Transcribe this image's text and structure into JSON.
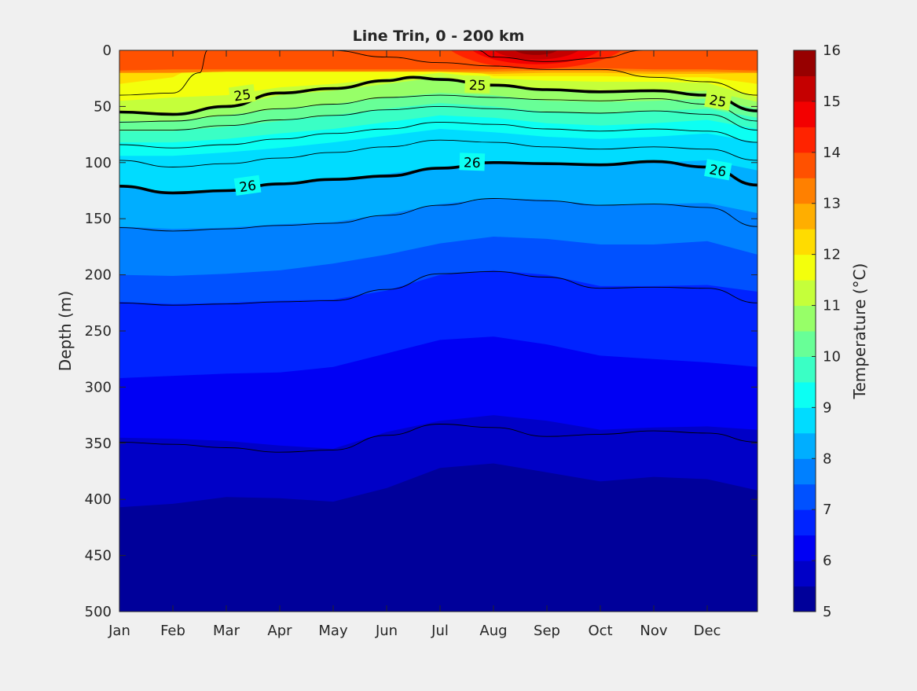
{
  "chart_data": {
    "type": "heatmap",
    "title": "Line Trin, 0 - 200 km",
    "xlabel": "",
    "ylabel": "Depth (m)",
    "x_tick_labels": [
      "Jan",
      "Feb",
      "Mar",
      "Apr",
      "May",
      "Jun",
      "Jul",
      "Aug",
      "Sep",
      "Oct",
      "Nov",
      "Dec"
    ],
    "x_range": [
      0,
      12
    ],
    "y_ticks": [
      0,
      50,
      100,
      150,
      200,
      250,
      300,
      350,
      400,
      450,
      500
    ],
    "y_range": [
      0,
      500
    ],
    "y_reversed": true,
    "colorbar": {
      "label": "Temperature (°C)",
      "ticks": [
        5,
        6,
        7,
        8,
        9,
        10,
        11,
        12,
        13,
        14,
        15,
        16
      ],
      "range": [
        5,
        16
      ],
      "step": 0.5,
      "colormap": "jet"
    },
    "isotherm_depths": [
      {
        "temperature": 13.5,
        "depths": [
          18,
          17,
          17,
          17,
          17,
          17,
          17,
          17,
          16,
          16,
          17,
          17,
          18,
          18
        ]
      },
      {
        "temperature": 13.0,
        "depths": [
          20,
          20,
          19,
          19,
          19,
          19,
          19,
          19,
          18,
          18,
          19,
          19,
          20,
          20
        ]
      },
      {
        "temperature": 12.5,
        "depths": [
          20,
          20,
          19,
          19,
          0,
          0,
          19,
          21,
          20,
          20,
          21,
          21,
          20,
          20
        ]
      },
      {
        "temperature": 12.0,
        "depths": [
          30,
          24,
          0,
          0,
          0,
          3,
          12,
          23,
          23,
          23,
          24,
          24,
          30,
          30
        ]
      },
      {
        "temperature": 11.5,
        "depths": [
          45,
          42,
          40,
          33,
          30,
          25,
          20,
          25,
          27,
          28,
          28,
          29,
          42,
          45
        ]
      },
      {
        "temperature": 11.0,
        "depths": [
          56,
          56,
          50,
          40,
          36,
          30,
          24,
          30,
          35,
          37,
          37,
          36,
          46,
          55
        ]
      },
      {
        "temperature": 10.5,
        "depths": [
          63,
          63,
          58,
          52,
          48,
          42,
          38,
          40,
          45,
          46,
          45,
          43,
          52,
          62
        ]
      },
      {
        "temperature": 10.0,
        "depths": [
          72,
          72,
          68,
          63,
          58,
          52,
          47,
          50,
          55,
          56,
          54,
          52,
          60,
          71
        ]
      },
      {
        "temperature": 9.5,
        "depths": [
          82,
          82,
          79,
          74,
          70,
          64,
          58,
          60,
          65,
          67,
          65,
          62,
          70,
          80
        ]
      },
      {
        "temperature": 9.0,
        "depths": [
          94,
          94,
          91,
          87,
          82,
          76,
          70,
          73,
          77,
          79,
          77,
          74,
          82,
          92
        ]
      },
      {
        "temperature": 8.5,
        "depths": [
          121,
          127,
          124,
          118,
          115,
          110,
          104,
          100,
          101,
          102,
          100,
          98,
          107,
          120
        ]
      },
      {
        "temperature": 8.0,
        "depths": [
          157,
          159,
          158,
          155,
          153,
          146,
          137,
          132,
          133,
          138,
          137,
          136,
          145,
          157
        ]
      },
      {
        "temperature": 7.5,
        "depths": [
          200,
          201,
          199,
          196,
          190,
          182,
          172,
          166,
          168,
          173,
          173,
          170,
          182,
          200
        ]
      },
      {
        "temperature": 7.0,
        "depths": [
          224,
          226,
          225,
          223,
          222,
          214,
          200,
          196,
          200,
          210,
          210,
          209,
          215,
          224
        ]
      },
      {
        "temperature": 6.5,
        "depths": [
          292,
          290,
          288,
          287,
          282,
          270,
          258,
          255,
          262,
          272,
          275,
          278,
          282,
          292
        ]
      },
      {
        "temperature": 6.0,
        "depths": [
          345,
          346,
          348,
          352,
          355,
          340,
          330,
          325,
          330,
          338,
          336,
          335,
          338,
          345
        ]
      },
      {
        "temperature": 5.5,
        "depths": [
          407,
          404,
          398,
          399,
          402,
          390,
          372,
          368,
          376,
          384,
          380,
          382,
          392,
          407
        ]
      },
      {
        "temperature": 5.0,
        "depths": [
          488,
          485,
          477,
          476,
          482,
          470,
          452,
          448,
          458,
          464,
          456,
          458,
          470,
          488
        ]
      }
    ],
    "isotherm_x": [
      0,
      1,
      2,
      3,
      4,
      5,
      6,
      7,
      8,
      9,
      10,
      11,
      12,
      12
    ],
    "surface_warm_core": {
      "center_x": 7.8,
      "top_temperature": 16,
      "depth_at_14": 22,
      "half_width": 1.6
    },
    "labeled_contours": [
      {
        "label": "25",
        "points": [
          [
            0,
            55
          ],
          [
            1,
            57
          ],
          [
            2,
            50
          ],
          [
            3,
            38
          ],
          [
            4,
            34
          ],
          [
            5,
            27
          ],
          [
            5.5,
            24
          ],
          [
            6,
            26
          ],
          [
            7,
            31
          ],
          [
            8,
            35
          ],
          [
            9,
            37
          ],
          [
            10,
            36
          ],
          [
            11,
            40
          ],
          [
            12,
            54
          ]
        ],
        "label_positions": [
          [
            2.3,
            40
          ],
          [
            6.7,
            31
          ],
          [
            11.2,
            45
          ]
        ]
      },
      {
        "label": "26",
        "points": [
          [
            0,
            121
          ],
          [
            1,
            127
          ],
          [
            2,
            125
          ],
          [
            3,
            119
          ],
          [
            4,
            115
          ],
          [
            5,
            112
          ],
          [
            6,
            105
          ],
          [
            7,
            100
          ],
          [
            8,
            101
          ],
          [
            9,
            102
          ],
          [
            10,
            99
          ],
          [
            11,
            104
          ],
          [
            12,
            120
          ]
        ],
        "label_positions": [
          [
            2.4,
            121
          ],
          [
            6.6,
            100
          ],
          [
            11.2,
            107
          ]
        ]
      }
    ],
    "thin_contours": [
      {
        "points": [
          [
            0,
            40
          ],
          [
            1,
            38
          ],
          [
            1.5,
            20
          ],
          [
            1.65,
            0
          ]
        ]
      },
      {
        "points": [
          [
            6.7,
            0
          ],
          [
            7,
            6
          ],
          [
            8,
            10
          ],
          [
            9,
            7
          ],
          [
            9.8,
            0
          ]
        ]
      },
      {
        "points": [
          [
            3.95,
            0
          ],
          [
            5,
            6
          ],
          [
            6,
            11
          ],
          [
            7,
            14
          ],
          [
            8,
            17
          ],
          [
            9,
            17
          ],
          [
            10,
            24
          ],
          [
            11,
            28
          ],
          [
            12,
            40
          ]
        ]
      },
      {
        "points": [
          [
            0,
            64
          ],
          [
            1,
            63
          ],
          [
            2,
            58
          ],
          [
            3,
            52
          ],
          [
            4,
            48
          ],
          [
            5,
            42
          ],
          [
            6,
            40
          ],
          [
            7,
            42
          ],
          [
            8,
            44
          ],
          [
            9,
            45
          ],
          [
            10,
            43
          ],
          [
            11,
            48
          ],
          [
            12,
            63
          ]
        ]
      },
      {
        "points": [
          [
            0,
            71
          ],
          [
            1,
            71
          ],
          [
            2,
            67
          ],
          [
            3,
            62
          ],
          [
            4,
            58
          ],
          [
            5,
            53
          ],
          [
            6,
            50
          ],
          [
            7,
            52
          ],
          [
            8,
            55
          ],
          [
            9,
            56
          ],
          [
            10,
            54
          ],
          [
            11,
            57
          ],
          [
            12,
            71
          ]
        ]
      },
      {
        "points": [
          [
            0,
            84
          ],
          [
            1,
            87
          ],
          [
            2,
            84
          ],
          [
            3,
            79
          ],
          [
            4,
            74
          ],
          [
            5,
            70
          ],
          [
            6,
            64
          ],
          [
            7,
            66
          ],
          [
            8,
            70
          ],
          [
            9,
            72
          ],
          [
            10,
            70
          ],
          [
            11,
            72
          ],
          [
            12,
            82
          ]
        ]
      },
      {
        "points": [
          [
            0,
            98
          ],
          [
            1,
            104
          ],
          [
            2,
            101
          ],
          [
            3,
            96
          ],
          [
            4,
            91
          ],
          [
            5,
            86
          ],
          [
            6,
            80
          ],
          [
            7,
            82
          ],
          [
            8,
            86
          ],
          [
            9,
            88
          ],
          [
            10,
            86
          ],
          [
            11,
            88
          ],
          [
            12,
            98
          ]
        ]
      },
      {
        "points": [
          [
            0,
            158
          ],
          [
            1,
            161
          ],
          [
            2,
            159
          ],
          [
            3,
            156
          ],
          [
            4,
            154
          ],
          [
            5,
            147
          ],
          [
            6,
            138
          ],
          [
            7,
            132
          ],
          [
            8,
            134
          ],
          [
            9,
            138
          ],
          [
            10,
            137
          ],
          [
            11,
            140
          ],
          [
            12,
            157
          ]
        ]
      },
      {
        "points": [
          [
            0,
            225
          ],
          [
            1,
            227
          ],
          [
            2,
            226
          ],
          [
            3,
            224
          ],
          [
            4,
            223
          ],
          [
            5,
            213
          ],
          [
            6,
            199
          ],
          [
            7,
            197
          ],
          [
            8,
            202
          ],
          [
            9,
            212
          ],
          [
            10,
            211
          ],
          [
            11,
            212
          ],
          [
            12,
            225
          ]
        ]
      },
      {
        "points": [
          [
            0,
            349
          ],
          [
            1,
            351
          ],
          [
            2,
            354
          ],
          [
            3,
            358
          ],
          [
            4,
            356
          ],
          [
            5,
            343
          ],
          [
            6,
            333
          ],
          [
            7,
            336
          ],
          [
            8,
            344
          ],
          [
            9,
            342
          ],
          [
            10,
            339
          ],
          [
            11,
            341
          ],
          [
            12,
            349
          ]
        ]
      }
    ]
  }
}
